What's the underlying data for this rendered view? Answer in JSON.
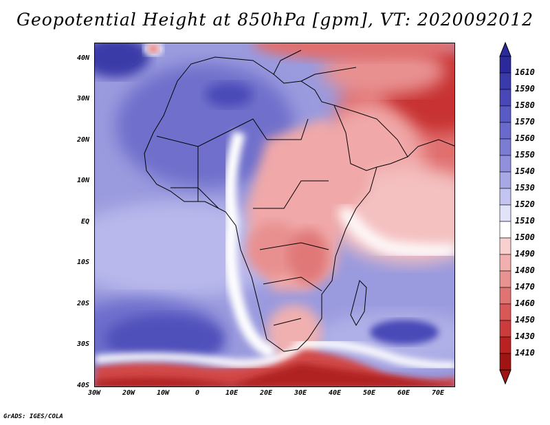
{
  "title": "Geopotential Height at 850hPa [gpm], VT: 2020092012",
  "footer": "GrADS: IGES/COLA",
  "map": {
    "variable": "Geopotential Height",
    "level": "850hPa",
    "units": "gpm",
    "valid_time": "2020092012",
    "lon_range": [
      -30,
      75
    ],
    "lat_range": [
      -40,
      45
    ],
    "lon_ticks": [
      "30W",
      "20W",
      "10W",
      "0",
      "10E",
      "20E",
      "30E",
      "40E",
      "50E",
      "60E",
      "70E"
    ],
    "lat_ticks": [
      "40N",
      "30N",
      "20N",
      "10N",
      "EQ",
      "10S",
      "20S",
      "30S",
      "40S"
    ]
  },
  "colorbar": {
    "levels": [
      "1610",
      "1590",
      "1580",
      "1570",
      "1560",
      "1550",
      "1540",
      "1530",
      "1520",
      "1510",
      "1500",
      "1490",
      "1480",
      "1470",
      "1460",
      "1450",
      "1430",
      "1410"
    ],
    "colors": [
      "#2a2a9a",
      "#3a3aaa",
      "#4848b8",
      "#5a5ac4",
      "#6a6acc",
      "#7c7cd4",
      "#9090dc",
      "#a8a8e6",
      "#c4c4f0",
      "#e2e2f8",
      "#ffffff",
      "#f8d0d0",
      "#f0b0b0",
      "#e89292",
      "#e07474",
      "#d85858",
      "#cc3c3c",
      "#b82222",
      "#a01414"
    ]
  },
  "fields": {
    "ocean_background": "#8c8cd8",
    "land_background": "#f3b5b5"
  }
}
